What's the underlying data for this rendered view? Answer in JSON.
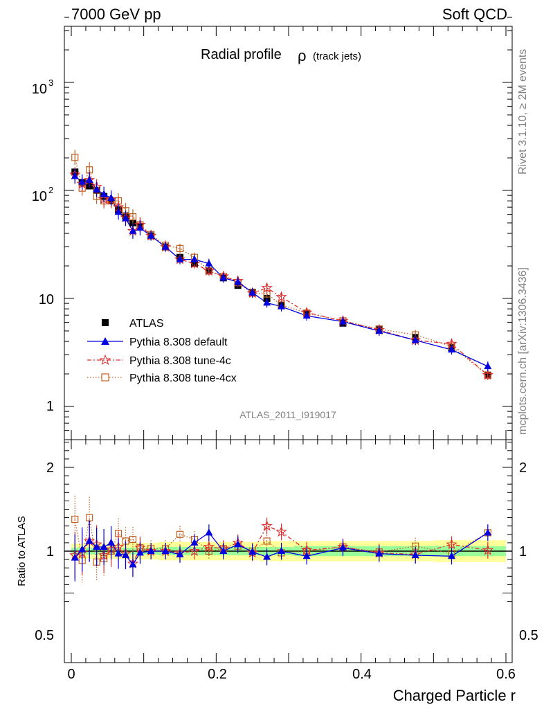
{
  "header": {
    "left": "7000 GeV pp",
    "right": "Soft QCD"
  },
  "side_text": {
    "top": "Rivet 3.1.10, ≥ 2M events",
    "bottom": "mcplots.cern.ch [arXiv:1306.3436]"
  },
  "chart_data": [
    {
      "type": "scatter",
      "title": "Radial profile",
      "title_symbol": "ρ",
      "title_suffix": "(track jets)",
      "analysis_label": "ATLAS_2011_I919017",
      "yscale": "log",
      "xlim": [
        -0.01,
        0.6
      ],
      "ylim": [
        0.5,
        4000
      ],
      "y_ticks": [
        "1",
        "10",
        "10",
        "10"
      ],
      "y_tick_values": [
        1,
        10,
        100,
        1000
      ],
      "y_tick_exponents": [
        "",
        "",
        "2",
        "3"
      ],
      "legend_position": "bottom-left",
      "x": [
        0.005,
        0.015,
        0.025,
        0.035,
        0.045,
        0.055,
        0.065,
        0.075,
        0.085,
        0.095,
        0.11,
        0.13,
        0.15,
        0.17,
        0.19,
        0.21,
        0.23,
        0.25,
        0.27,
        0.29,
        0.325,
        0.375,
        0.425,
        0.475,
        0.525,
        0.575
      ],
      "series": [
        {
          "name": "ATLAS",
          "color": "#000000",
          "marker": "square-filled",
          "values": [
            148,
            118,
            110,
            100,
            88,
            80,
            66,
            58,
            50,
            46,
            38,
            30,
            24,
            21,
            18,
            15.5,
            13.2,
            11.4,
            10.0,
            8.6,
            7.3,
            5.9,
            5.2,
            4.35,
            3.5,
            1.95
          ]
        },
        {
          "name": "Pythia 8.308 default",
          "color": "#0000e0",
          "marker": "triangle-filled",
          "values": [
            135,
            120,
            125,
            102,
            92,
            85,
            63,
            55,
            42,
            45,
            38,
            30,
            23,
            23,
            21,
            15.5,
            14.2,
            11.3,
            9.1,
            8.4,
            6.9,
            6.1,
            5.0,
            4.1,
            3.35,
            2.35
          ]
        },
        {
          "name": "Pythia 8.308 tune-4c",
          "color": "#e03030",
          "marker": "star-open",
          "values": [
            140,
            115,
            125,
            108,
            83,
            82,
            70,
            56,
            42,
            48,
            38,
            30,
            23,
            21,
            18,
            16,
            14.5,
            11.2,
            12.5,
            10.3,
            7.4,
            6.2,
            5.1,
            4.1,
            3.8,
            1.95
          ]
        },
        {
          "name": "Pythia 8.308 tune-4cx",
          "color": "#c06020",
          "marker": "square-open",
          "values": [
            202,
            105,
            155,
            88,
            80,
            80,
            80,
            65,
            57,
            48,
            39,
            31,
            29,
            24,
            18,
            16,
            14,
            11.2,
            11.0,
            8.7,
            7.3,
            6.2,
            5.2,
            4.6,
            3.6,
            1.95
          ]
        }
      ]
    },
    {
      "type": "scatter",
      "ylabel": "Ratio to ATLAS",
      "xlabel": "Charged Particle r",
      "xlim": [
        -0.01,
        0.6
      ],
      "ylim": [
        0.3,
        2.4
      ],
      "y_ticks": [
        "0.5",
        "1",
        "2"
      ],
      "y_tick_values": [
        0.5,
        1,
        2
      ],
      "x_ticks": [
        "0",
        "0.2",
        "0.4",
        "0.6"
      ],
      "x_tick_values": [
        0,
        0.2,
        0.4,
        0.6
      ],
      "band_inner": [
        0.04,
        0.04,
        0.04,
        0.04,
        0.04,
        0.04,
        0.04,
        0.04,
        0.04,
        0.04,
        0.04,
        0.05,
        0.05,
        0.05,
        0.05,
        0.05,
        0.05,
        0.05,
        0.05,
        0.05,
        0.06,
        0.06,
        0.06,
        0.06,
        0.06,
        0.06
      ],
      "band_outer": [
        0.09,
        0.09,
        0.09,
        0.09,
        0.09,
        0.09,
        0.09,
        0.09,
        0.1,
        0.1,
        0.1,
        0.11,
        0.11,
        0.11,
        0.11,
        0.11,
        0.11,
        0.11,
        0.12,
        0.12,
        0.12,
        0.12,
        0.12,
        0.12,
        0.13,
        0.13
      ],
      "series": [
        {
          "name": "Pythia 8.308 default",
          "color": "#0000e0",
          "values": [
            0.92,
            1.02,
            1.12,
            1.05,
            1.05,
            1.1,
            0.97,
            0.95,
            0.84,
            0.98,
            1.0,
            1.0,
            0.96,
            1.1,
            1.22,
            1.0,
            1.08,
            0.99,
            0.93,
            1.0,
            0.94,
            1.04,
            0.97,
            0.95,
            0.94,
            1.22
          ]
        },
        {
          "name": "Pythia 8.308 tune-4c",
          "color": "#e03030",
          "values": [
            0.95,
            0.98,
            1.12,
            1.08,
            0.95,
            1.02,
            1.05,
            0.97,
            0.85,
            1.04,
            1.0,
            1.0,
            0.98,
            1.0,
            1.05,
            1.03,
            1.1,
            0.98,
            1.3,
            1.23,
            1.01,
            1.05,
            0.98,
            0.96,
            1.08,
            1.01
          ]
        },
        {
          "name": "Pythia 8.308 tune-4cx",
          "color": "#c06020",
          "values": [
            1.38,
            0.89,
            1.4,
            0.87,
            0.91,
            1.0,
            1.21,
            1.12,
            1.14,
            1.04,
            1.03,
            1.03,
            1.2,
            1.14,
            1.0,
            1.03,
            1.06,
            1.0,
            1.12,
            0.98,
            1.0,
            1.05,
            0.99,
            1.06,
            0.97,
            1.22
          ]
        }
      ]
    }
  ]
}
